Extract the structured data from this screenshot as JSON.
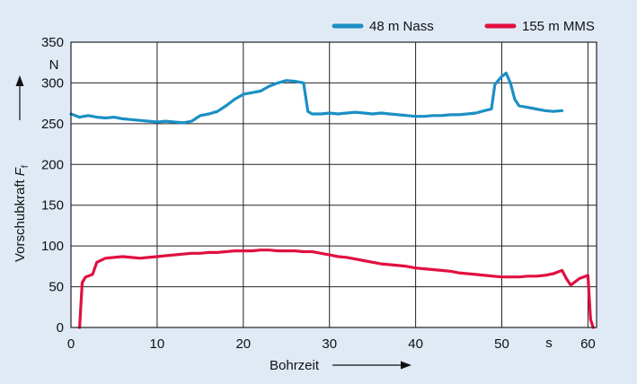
{
  "chart_data": {
    "type": "line",
    "xlabel": "Bohrzeit",
    "ylabel_main": "Vorschubkraft",
    "ylabel_symbol": "F",
    "ylabel_subscript": "f",
    "x_unit": "s",
    "y_unit": "N",
    "xlim": [
      0,
      61
    ],
    "ylim": [
      0,
      350
    ],
    "x_ticks": [
      0,
      10,
      20,
      30,
      40,
      50,
      60
    ],
    "y_ticks": [
      0,
      50,
      100,
      150,
      200,
      250,
      300,
      350
    ],
    "grid": true,
    "legend_position": "top-right",
    "colors": {
      "background": "#dfeaf5",
      "plot_area": "#ffffff"
    },
    "series": [
      {
        "name": "48 m Nass",
        "color": "#1b8fc4",
        "x": [
          0,
          1,
          2,
          3,
          4,
          5,
          6,
          7,
          8,
          9,
          10,
          11,
          12,
          13,
          14,
          15,
          16,
          17,
          18,
          19,
          20,
          21,
          22,
          23,
          24,
          25,
          26,
          27,
          27.5,
          28,
          29,
          30,
          31,
          32,
          33,
          34,
          35,
          36,
          37,
          38,
          39,
          40,
          41,
          42,
          43,
          44,
          45,
          46,
          47,
          48,
          48.8,
          49.2,
          50,
          50.5,
          51,
          51.5,
          52,
          53,
          54,
          55,
          56,
          57
        ],
        "y": [
          262,
          258,
          260,
          258,
          257,
          258,
          256,
          255,
          254,
          253,
          252,
          253,
          252,
          251,
          253,
          260,
          262,
          265,
          272,
          280,
          286,
          288,
          290,
          296,
          300,
          303,
          302,
          300,
          265,
          262,
          262,
          263,
          262,
          263,
          264,
          263,
          262,
          263,
          262,
          261,
          260,
          259,
          259,
          260,
          260,
          261,
          261,
          262,
          263,
          266,
          268,
          298,
          308,
          312,
          300,
          280,
          272,
          270,
          268,
          266,
          265,
          266
        ]
      },
      {
        "name": "155 m MMS",
        "color": "#e0103f",
        "x": [
          1,
          1.3,
          1.7,
          2.5,
          3,
          4,
          5,
          6,
          7,
          8,
          9,
          10,
          11,
          12,
          13,
          14,
          15,
          16,
          17,
          18,
          19,
          20,
          21,
          22,
          23,
          24,
          25,
          26,
          27,
          28,
          29,
          30,
          31,
          32,
          33,
          34,
          35,
          36,
          37,
          38,
          39,
          40,
          41,
          42,
          43,
          44,
          45,
          46,
          47,
          48,
          49,
          50,
          51,
          52,
          53,
          54,
          55,
          56,
          57,
          57.5,
          58,
          59,
          60,
          60.3,
          60.6
        ],
        "y": [
          0,
          55,
          62,
          65,
          80,
          85,
          86,
          87,
          86,
          85,
          86,
          87,
          88,
          89,
          90,
          91,
          91,
          92,
          92,
          93,
          94,
          94,
          94,
          95,
          95,
          94,
          94,
          94,
          93,
          93,
          91,
          89,
          87,
          86,
          84,
          82,
          80,
          78,
          77,
          76,
          75,
          73,
          72,
          71,
          70,
          69,
          67,
          66,
          65,
          64,
          63,
          62,
          62,
          62,
          63,
          63,
          64,
          66,
          70,
          60,
          52,
          60,
          64,
          10,
          0
        ]
      }
    ]
  }
}
